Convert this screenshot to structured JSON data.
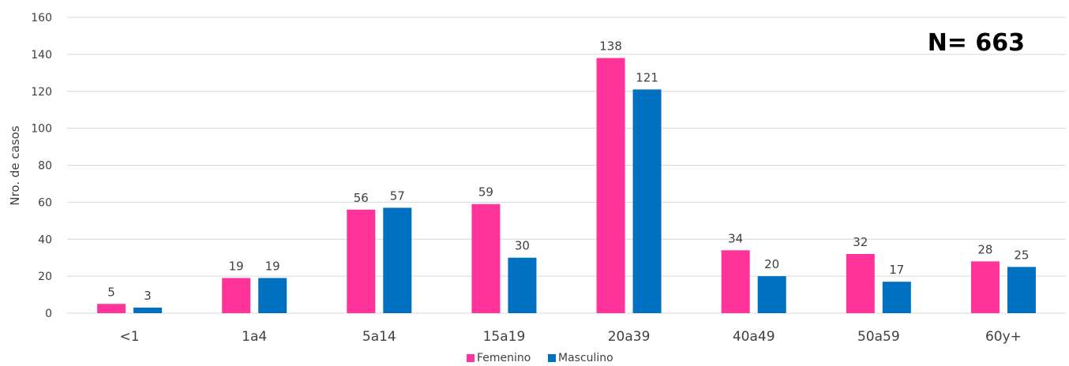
{
  "chart_data": {
    "type": "bar",
    "categories": [
      "<1",
      "1a4",
      "5a14",
      "15a19",
      "20a39",
      "40a49",
      "50a59",
      "60y+"
    ],
    "series": [
      {
        "name": "Femenino",
        "color": "#ff3399",
        "values": [
          5,
          19,
          56,
          59,
          138,
          34,
          32,
          28
        ]
      },
      {
        "name": "Masculino",
        "color": "#0070c0",
        "values": [
          3,
          19,
          57,
          30,
          121,
          20,
          17,
          25
        ]
      }
    ],
    "title": "",
    "xlabel": "",
    "ylabel": "Nro. de casos",
    "ylim": [
      0,
      160
    ],
    "yticks": [
      0,
      20,
      40,
      60,
      80,
      100,
      120,
      140,
      160
    ],
    "grid": true,
    "legend": "bottom",
    "annotation": "N= 663"
  }
}
